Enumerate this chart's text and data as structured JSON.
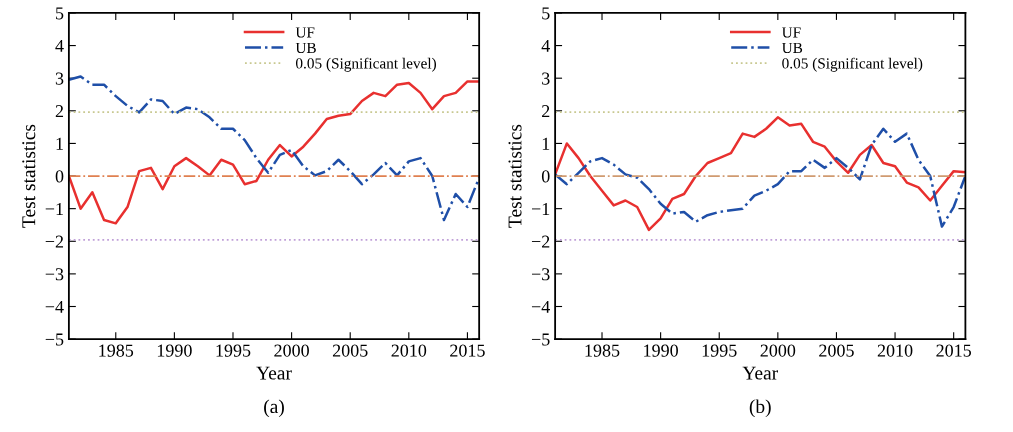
{
  "chart_data": [
    {
      "type": "line",
      "xlabel": "Year",
      "ylabel": "Test statistics",
      "annotations": [
        "(a)"
      ],
      "x": [
        1981,
        1982,
        1983,
        1984,
        1985,
        1986,
        1987,
        1988,
        1989,
        1990,
        1991,
        1992,
        1993,
        1994,
        1995,
        1996,
        1997,
        1998,
        1999,
        2000,
        2001,
        2002,
        2003,
        2004,
        2005,
        2006,
        2007,
        2008,
        2009,
        2010,
        2011,
        2012,
        2013,
        2014,
        2015,
        2016
      ],
      "series": [
        {
          "name": "UF",
          "color": "#e8302f",
          "line_style": "solid",
          "values": [
            0,
            -1.0,
            -0.5,
            -1.35,
            -1.45,
            -0.95,
            0.15,
            0.25,
            -0.4,
            0.3,
            0.55,
            0.3,
            0.02,
            0.5,
            0.35,
            -0.25,
            -0.15,
            0.5,
            0.95,
            0.6,
            0.9,
            1.3,
            1.75,
            1.85,
            1.9,
            2.3,
            2.55,
            2.45,
            2.8,
            2.85,
            2.55,
            2.05,
            2.45,
            2.55,
            2.9,
            2.9
          ]
        },
        {
          "name": "UB",
          "color": "#1f4fa8",
          "line_style": "dashdot",
          "values": [
            2.95,
            3.05,
            2.8,
            2.8,
            2.45,
            2.15,
            1.95,
            2.35,
            2.3,
            1.9,
            2.1,
            2.05,
            1.8,
            1.45,
            1.45,
            1.1,
            0.55,
            0.1,
            0.65,
            0.8,
            0.3,
            0.02,
            0.15,
            0.5,
            0.15,
            -0.25,
            0.05,
            0.4,
            0.02,
            0.45,
            0.55,
            0.0,
            -1.35,
            -0.55,
            -0.95,
            -0.05
          ]
        }
      ],
      "ref_lines": [
        {
          "axis": "y",
          "value": 1.96,
          "label": "0.05 (Significant level)",
          "color": "#c8c890",
          "line_style": "dotted"
        },
        {
          "axis": "y",
          "value": 0,
          "label": null,
          "color": "#e08050",
          "line_style": "dashdot"
        },
        {
          "axis": "y",
          "value": -1.96,
          "label": null,
          "color": "#c0a0d8",
          "line_style": "dotted"
        }
      ],
      "xlim": [
        1981,
        2016
      ],
      "xticks": [
        1985,
        1990,
        1995,
        2000,
        2005,
        2010,
        2015
      ],
      "ylim": [
        -5,
        5
      ],
      "yticks": [
        {
          "value": -5,
          "label": "−5"
        },
        {
          "value": -4,
          "label": "−4"
        },
        {
          "value": -3,
          "label": "−3"
        },
        {
          "value": -2,
          "label": "−2"
        },
        {
          "value": -1,
          "label": "−1"
        },
        0,
        1,
        2,
        3,
        4,
        5
      ],
      "grid": false,
      "legend": "top right"
    },
    {
      "type": "line",
      "xlabel": "Year",
      "ylabel": "Test statistics",
      "annotations": [
        "(b)"
      ],
      "x": [
        1981,
        1982,
        1983,
        1984,
        1985,
        1986,
        1987,
        1988,
        1989,
        1990,
        1991,
        1992,
        1993,
        1994,
        1995,
        1996,
        1997,
        1998,
        1999,
        2000,
        2001,
        2002,
        2003,
        2004,
        2005,
        2006,
        2007,
        2008,
        2009,
        2010,
        2011,
        2012,
        2013,
        2014,
        2015,
        2016
      ],
      "series": [
        {
          "name": "UF",
          "color": "#e8302f",
          "line_style": "solid",
          "values": [
            0.05,
            1.0,
            0.55,
            0.0,
            -0.45,
            -0.9,
            -0.75,
            -0.95,
            -1.65,
            -1.3,
            -0.7,
            -0.55,
            0.0,
            0.4,
            0.55,
            0.7,
            1.3,
            1.2,
            1.45,
            1.8,
            1.55,
            1.6,
            1.05,
            0.9,
            0.45,
            0.1,
            0.65,
            0.95,
            0.4,
            0.3,
            -0.2,
            -0.35,
            -0.75,
            -0.3,
            0.15,
            0.12
          ]
        },
        {
          "name": "UB",
          "color": "#1f4fa8",
          "line_style": "dashdot",
          "values": [
            0.05,
            -0.25,
            0.1,
            0.45,
            0.55,
            0.35,
            0.05,
            -0.05,
            -0.4,
            -0.85,
            -1.15,
            -1.1,
            -1.4,
            -1.2,
            -1.1,
            -1.05,
            -1.0,
            -0.6,
            -0.45,
            -0.25,
            0.15,
            0.15,
            0.5,
            0.25,
            0.55,
            0.25,
            -0.1,
            0.95,
            1.45,
            1.05,
            1.3,
            0.5,
            0.0,
            -1.55,
            -0.95,
            0.0
          ]
        }
      ],
      "ref_lines": [
        {
          "axis": "y",
          "value": 1.96,
          "label": "0.05 (Significant level)",
          "color": "#c8c890",
          "line_style": "dotted"
        },
        {
          "axis": "y",
          "value": 0,
          "label": null,
          "color": "#d09a70",
          "line_style": "dashdot"
        },
        {
          "axis": "y",
          "value": -1.96,
          "label": null,
          "color": "#c0a0d8",
          "line_style": "dotted"
        }
      ],
      "xlim": [
        1981,
        2016
      ],
      "xticks": [
        1985,
        1990,
        1995,
        2000,
        2005,
        2010,
        2015
      ],
      "ylim": [
        -5,
        5
      ],
      "yticks": [
        {
          "value": -5,
          "label": "−5"
        },
        {
          "value": -4,
          "label": "−4"
        },
        {
          "value": -3,
          "label": "−3"
        },
        {
          "value": -2,
          "label": "−2"
        },
        {
          "value": -1,
          "label": "−1"
        },
        0,
        1,
        2,
        3,
        4,
        5
      ],
      "grid": false,
      "legend": "top right"
    }
  ]
}
